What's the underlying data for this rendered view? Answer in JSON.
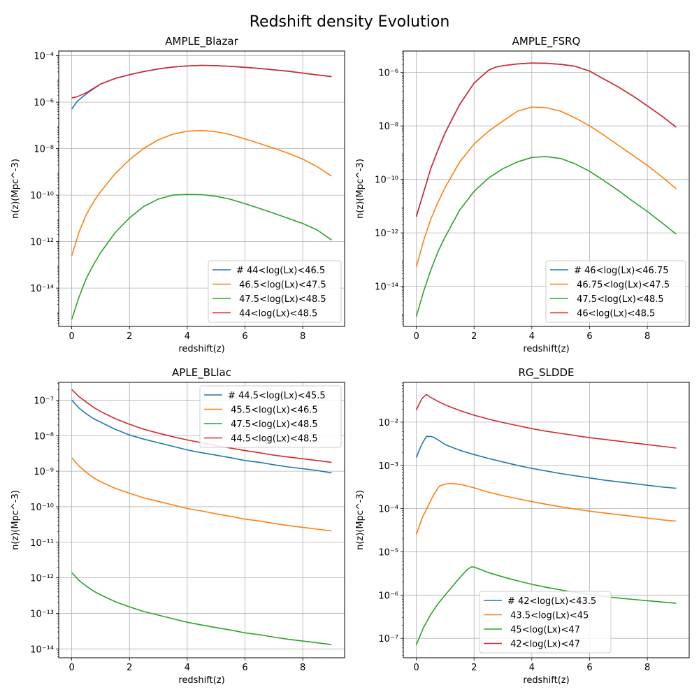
{
  "figure": {
    "title": "Redshift density Evolution"
  },
  "colors": {
    "blue": "#1f77b4",
    "orange": "#ff7f0e",
    "green": "#2ca02c",
    "red": "#d62728"
  },
  "chart_data": [
    {
      "type": "line",
      "title": "AMPLE_Blazar",
      "xlabel": "redshift(z)",
      "ylabel": "n(z)(Mpc^-3)",
      "yscale": "log",
      "xlim": [
        -0.45,
        9.45
      ],
      "ylim_exp": [
        -15.65,
        -3.8
      ],
      "xticks": [
        0,
        2,
        4,
        6,
        8
      ],
      "yticks_exp": [
        -14,
        -12,
        -10,
        -8,
        -6,
        -4
      ],
      "grid": true,
      "legend": "lower-right",
      "series": [
        {
          "name": "# 44<log(Lx)<46.5",
          "color": "blue",
          "x": [
            0,
            0.2,
            0.5,
            1,
            1.5,
            2,
            2.5,
            3,
            3.5,
            4,
            4.5,
            5,
            5.5,
            6,
            6.5,
            7,
            7.5,
            8,
            8.5,
            9
          ],
          "y_exp": [
            -6.3,
            -5.95,
            -5.65,
            -5.22,
            -4.98,
            -4.82,
            -4.68,
            -4.57,
            -4.49,
            -4.44,
            -4.42,
            -4.43,
            -4.46,
            -4.5,
            -4.55,
            -4.61,
            -4.67,
            -4.75,
            -4.83,
            -4.9
          ]
        },
        {
          "name": " 46.5<log(Lx)<47.5",
          "color": "orange",
          "x": [
            0,
            0.25,
            0.5,
            0.75,
            1,
            1.5,
            2,
            2.5,
            3,
            3.5,
            4,
            4.5,
            5,
            5.5,
            6,
            6.5,
            7,
            7.5,
            8,
            8.5,
            9
          ],
          "y_exp": [
            -12.62,
            -11.6,
            -10.85,
            -10.3,
            -9.85,
            -9.08,
            -8.48,
            -7.98,
            -7.62,
            -7.38,
            -7.25,
            -7.22,
            -7.27,
            -7.4,
            -7.58,
            -7.78,
            -7.98,
            -8.2,
            -8.45,
            -8.78,
            -9.18
          ]
        },
        {
          "name": " 47.5<log(Lx)<48.5",
          "color": "green",
          "x": [
            0,
            0.25,
            0.5,
            0.75,
            1,
            1.5,
            2,
            2.5,
            3,
            3.5,
            4,
            4.5,
            5,
            5.5,
            6,
            6.5,
            7,
            7.5,
            8,
            8.5,
            9
          ],
          "y_exp": [
            -15.35,
            -14.4,
            -13.6,
            -13.0,
            -12.48,
            -11.62,
            -10.98,
            -10.48,
            -10.17,
            -10.0,
            -9.97,
            -9.98,
            -10.05,
            -10.18,
            -10.37,
            -10.57,
            -10.78,
            -11.0,
            -11.22,
            -11.5,
            -11.93
          ]
        },
        {
          "name": " 44<log(Lx)<48.5",
          "color": "red",
          "x": [
            0,
            0.2,
            0.5,
            1,
            1.5,
            2,
            2.5,
            3,
            3.5,
            4,
            4.5,
            5,
            5.5,
            6,
            6.5,
            7,
            7.5,
            8,
            8.5,
            9
          ],
          "y_exp": [
            -5.82,
            -5.76,
            -5.6,
            -5.22,
            -4.98,
            -4.82,
            -4.68,
            -4.57,
            -4.49,
            -4.44,
            -4.42,
            -4.43,
            -4.46,
            -4.5,
            -4.55,
            -4.61,
            -4.67,
            -4.75,
            -4.83,
            -4.9
          ]
        }
      ]
    },
    {
      "type": "line",
      "title": "AMPLE_FSRQ",
      "xlabel": "redshift(z)",
      "ylabel": "n(z)(Mpc^-3)",
      "yscale": "log",
      "xlim": [
        -0.45,
        9.45
      ],
      "ylim_exp": [
        -15.5,
        -5.2
      ],
      "xticks": [
        0,
        2,
        4,
        6,
        8
      ],
      "yticks_exp": [
        -14,
        -12,
        -10,
        -8,
        -6
      ],
      "grid": true,
      "legend": "lower-right",
      "series": [
        {
          "name": "# 46<log(Lx)<46.75",
          "color": "blue",
          "x": [
            0,
            0.25,
            0.5,
            0.75,
            1,
            1.5,
            2,
            2.5,
            2.75,
            3,
            3.5,
            4,
            4.5,
            5,
            5.5,
            6,
            6.5,
            7,
            7.5,
            8,
            8.5,
            9
          ],
          "y_exp": [
            -11.4,
            -10.5,
            -9.6,
            -8.9,
            -8.25,
            -7.2,
            -6.4,
            -5.92,
            -5.8,
            -5.75,
            -5.68,
            -5.65,
            -5.66,
            -5.7,
            -5.77,
            -5.95,
            -6.25,
            -6.55,
            -6.88,
            -7.25,
            -7.63,
            -8.05
          ]
        },
        {
          "name": " 46.75<log(Lx)<47.5",
          "color": "orange",
          "x": [
            0,
            0.25,
            0.5,
            0.75,
            1,
            1.5,
            2,
            2.5,
            3,
            3.5,
            4,
            4.5,
            5,
            5.5,
            6,
            6.5,
            7,
            7.5,
            8,
            8.5,
            9
          ],
          "y_exp": [
            -13.28,
            -12.3,
            -11.5,
            -10.85,
            -10.3,
            -9.35,
            -8.68,
            -8.2,
            -7.82,
            -7.45,
            -7.3,
            -7.32,
            -7.45,
            -7.7,
            -8.0,
            -8.35,
            -8.73,
            -9.1,
            -9.48,
            -9.9,
            -10.35
          ]
        },
        {
          "name": " 47.5<log(Lx)<48.5",
          "color": "green",
          "x": [
            0,
            0.25,
            0.5,
            0.75,
            1,
            1.5,
            2,
            2.5,
            3,
            3.5,
            4,
            4.5,
            5,
            5.5,
            6,
            6.5,
            7,
            7.5,
            8,
            8.5,
            9
          ],
          "y_exp": [
            -15.13,
            -14.2,
            -13.4,
            -12.7,
            -12.15,
            -11.15,
            -10.45,
            -9.95,
            -9.6,
            -9.35,
            -9.18,
            -9.15,
            -9.22,
            -9.42,
            -9.7,
            -10.05,
            -10.42,
            -10.82,
            -11.2,
            -11.62,
            -12.05
          ]
        },
        {
          "name": " 46<log(Lx)<48.5",
          "color": "red",
          "x": [
            0,
            0.25,
            0.5,
            0.75,
            1,
            1.5,
            2,
            2.5,
            2.75,
            3,
            3.5,
            4,
            4.5,
            5,
            5.5,
            6,
            6.5,
            7,
            7.5,
            8,
            8.5,
            9
          ],
          "y_exp": [
            -11.38,
            -10.5,
            -9.6,
            -8.9,
            -8.25,
            -7.2,
            -6.4,
            -5.92,
            -5.8,
            -5.75,
            -5.68,
            -5.65,
            -5.66,
            -5.7,
            -5.77,
            -5.95,
            -6.25,
            -6.55,
            -6.88,
            -7.25,
            -7.63,
            -8.05
          ]
        }
      ]
    },
    {
      "type": "line",
      "title": "APLE_BLlac",
      "xlabel": "redshift(z)",
      "ylabel": "n(z)(Mpc^-3)",
      "yscale": "log",
      "xlim": [
        -0.45,
        9.45
      ],
      "ylim_exp": [
        -14.25,
        -6.5
      ],
      "xticks": [
        0,
        2,
        4,
        6,
        8
      ],
      "yticks_exp": [
        -14,
        -13,
        -12,
        -11,
        -10,
        -9,
        -8,
        -7
      ],
      "grid": true,
      "legend": "upper-right",
      "series": [
        {
          "name": "# 44.5<log(Lx)<45.5",
          "color": "blue",
          "x": [
            0,
            0.25,
            0.5,
            0.75,
            1,
            1.5,
            2,
            2.5,
            3,
            3.5,
            4,
            4.5,
            5,
            5.5,
            6,
            6.5,
            7,
            7.5,
            8,
            8.5,
            9
          ],
          "y_exp": [
            -7.0,
            -7.22,
            -7.38,
            -7.52,
            -7.62,
            -7.82,
            -7.98,
            -8.1,
            -8.2,
            -8.3,
            -8.4,
            -8.48,
            -8.55,
            -8.62,
            -8.7,
            -8.75,
            -8.82,
            -8.88,
            -8.93,
            -8.98,
            -9.05
          ]
        },
        {
          "name": " 45.5<log(Lx)<46.5",
          "color": "orange",
          "x": [
            0,
            0.25,
            0.5,
            0.75,
            1,
            1.5,
            2,
            2.5,
            3,
            3.5,
            4,
            4.5,
            5,
            5.5,
            6,
            6.5,
            7,
            7.5,
            8,
            8.5,
            9
          ],
          "y_exp": [
            -8.62,
            -8.85,
            -9.03,
            -9.18,
            -9.3,
            -9.48,
            -9.62,
            -9.75,
            -9.85,
            -9.95,
            -10.05,
            -10.12,
            -10.2,
            -10.27,
            -10.35,
            -10.4,
            -10.47,
            -10.53,
            -10.58,
            -10.63,
            -10.68
          ]
        },
        {
          "name": " 47.5<log(Lx)<48.5",
          "color": "green",
          "x": [
            0,
            0.25,
            0.5,
            0.75,
            1,
            1.5,
            2,
            2.5,
            3,
            3.5,
            4,
            4.5,
            5,
            5.5,
            6,
            6.5,
            7,
            7.5,
            8,
            8.5,
            9
          ],
          "y_exp": [
            -11.85,
            -12.07,
            -12.23,
            -12.37,
            -12.48,
            -12.67,
            -12.82,
            -12.95,
            -13.05,
            -13.15,
            -13.25,
            -13.33,
            -13.4,
            -13.47,
            -13.55,
            -13.6,
            -13.67,
            -13.73,
            -13.78,
            -13.83,
            -13.88
          ]
        },
        {
          "name": " 44.5<log(Lx)<48.5",
          "color": "red",
          "x": [
            0,
            0.25,
            0.5,
            0.75,
            1,
            1.5,
            2,
            2.5,
            3,
            3.5,
            4,
            4.5,
            5,
            5.5,
            6,
            6.5,
            7,
            7.5,
            8,
            8.5,
            9
          ],
          "y_exp": [
            -6.7,
            -6.9,
            -7.05,
            -7.2,
            -7.32,
            -7.52,
            -7.68,
            -7.82,
            -7.93,
            -8.03,
            -8.12,
            -8.2,
            -8.28,
            -8.35,
            -8.42,
            -8.48,
            -8.55,
            -8.6,
            -8.65,
            -8.7,
            -8.75
          ]
        }
      ]
    },
    {
      "type": "line",
      "title": "RG_SLDDE",
      "xlabel": "redshift(z)",
      "ylabel": "n(z)(Mpc^-3)",
      "yscale": "log",
      "xlim": [
        -0.45,
        9.45
      ],
      "ylim_exp": [
        -7.45,
        -1.08
      ],
      "xticks": [
        0,
        2,
        4,
        6,
        8
      ],
      "yticks_exp": [
        -7,
        -6,
        -5,
        -4,
        -3,
        -2
      ],
      "grid": true,
      "legend": "lower-center",
      "series": [
        {
          "name": "# 42<log(Lx)<43.5",
          "color": "blue",
          "x": [
            0,
            0.1,
            0.2,
            0.35,
            0.5,
            0.6,
            0.8,
            1,
            1.5,
            2,
            2.5,
            3,
            3.5,
            4,
            4.5,
            5,
            5.5,
            6,
            6.5,
            7,
            7.5,
            8,
            8.5,
            9
          ],
          "y_exp": [
            -2.82,
            -2.65,
            -2.5,
            -2.33,
            -2.33,
            -2.35,
            -2.43,
            -2.52,
            -2.65,
            -2.75,
            -2.84,
            -2.92,
            -3.0,
            -3.07,
            -3.13,
            -3.19,
            -3.24,
            -3.29,
            -3.34,
            -3.38,
            -3.42,
            -3.46,
            -3.5,
            -3.53
          ]
        },
        {
          "name": " 43.5<log(Lx)<45",
          "color": "orange",
          "x": [
            0,
            0.2,
            0.4,
            0.6,
            0.8,
            1,
            1.2,
            1.4,
            1.6,
            2,
            2.5,
            3,
            3.5,
            4,
            4.5,
            5,
            5.5,
            6,
            6.5,
            7,
            7.5,
            8,
            8.5,
            9
          ],
          "y_exp": [
            -4.6,
            -4.22,
            -3.95,
            -3.68,
            -3.48,
            -3.43,
            -3.42,
            -3.43,
            -3.45,
            -3.52,
            -3.62,
            -3.7,
            -3.77,
            -3.84,
            -3.9,
            -3.96,
            -4.01,
            -4.06,
            -4.1,
            -4.14,
            -4.18,
            -4.22,
            -4.26,
            -4.29
          ]
        },
        {
          "name": " 45<log(Lx)<47",
          "color": "green",
          "x": [
            0,
            0.25,
            0.5,
            0.75,
            1,
            1.25,
            1.5,
            1.75,
            1.9,
            2,
            2.5,
            3,
            3.5,
            4,
            4.5,
            5,
            5.5,
            6,
            6.5,
            7,
            7.5,
            8,
            8.5,
            9
          ],
          "y_exp": [
            -7.15,
            -6.75,
            -6.45,
            -6.2,
            -6.0,
            -5.8,
            -5.6,
            -5.42,
            -5.35,
            -5.35,
            -5.48,
            -5.58,
            -5.67,
            -5.75,
            -5.82,
            -5.88,
            -5.94,
            -5.99,
            -6.03,
            -6.07,
            -6.1,
            -6.13,
            -6.16,
            -6.19
          ]
        },
        {
          "name": " 42<log(Lx)<47",
          "color": "red",
          "x": [
            0,
            0.1,
            0.2,
            0.35,
            0.5,
            0.75,
            1,
            1.5,
            2,
            2.5,
            3,
            3.5,
            4,
            4.5,
            5,
            5.5,
            6,
            6.5,
            7,
            7.5,
            8,
            8.5,
            9
          ],
          "y_exp": [
            -1.72,
            -1.58,
            -1.45,
            -1.36,
            -1.43,
            -1.52,
            -1.6,
            -1.73,
            -1.84,
            -1.93,
            -2.01,
            -2.08,
            -2.15,
            -2.21,
            -2.26,
            -2.31,
            -2.36,
            -2.4,
            -2.44,
            -2.48,
            -2.52,
            -2.56,
            -2.6
          ]
        }
      ]
    }
  ]
}
